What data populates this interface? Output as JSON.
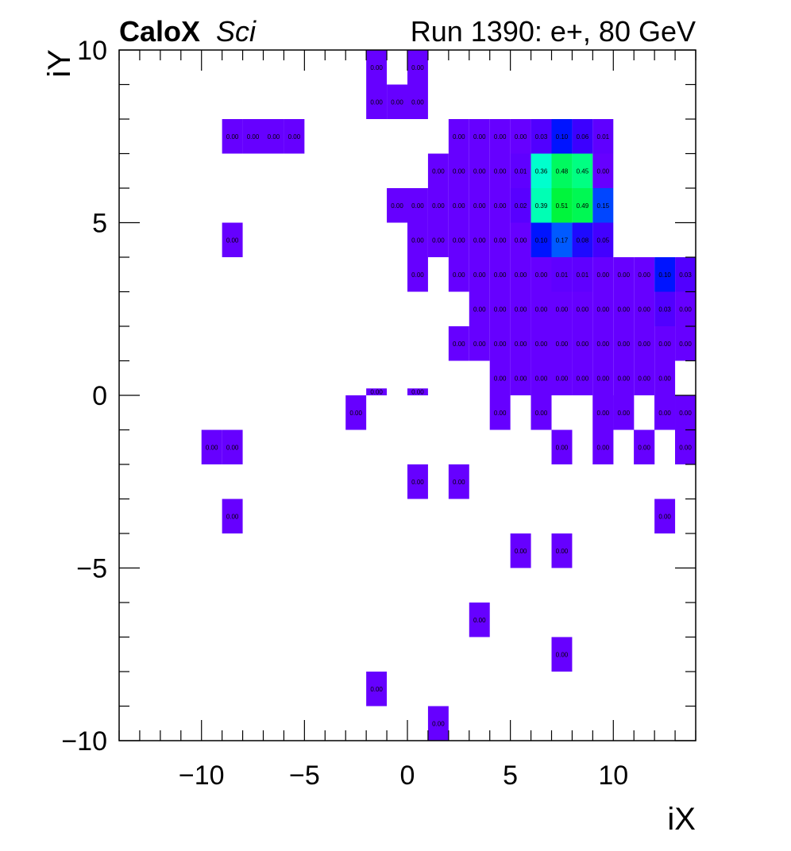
{
  "chart_data": {
    "type": "heatmap",
    "brand": "CaloX",
    "brand_suffix": "Sci",
    "title": "Run 1390: e+, 80 GeV",
    "xlabel": "iX",
    "ylabel": "iY",
    "xlim": [
      -14,
      14
    ],
    "ylim": [
      -10,
      10
    ],
    "x_ticks": [
      "−10",
      "−5",
      "0",
      "5",
      "10"
    ],
    "x_tick_values": [
      -10,
      -5,
      0,
      5,
      10
    ],
    "y_ticks": [
      "−10",
      "−5",
      "0",
      "5",
      "10"
    ],
    "y_tick_values": [
      -10,
      -5,
      0,
      5,
      10
    ],
    "grid": false,
    "cells": [
      {
        "x": -1.5,
        "y": 9.5,
        "value": 0.0
      },
      {
        "x": 0.5,
        "y": 9.5,
        "value": 0.0
      },
      {
        "x": -1.5,
        "y": 8.5,
        "value": 0.0
      },
      {
        "x": -0.5,
        "y": 8.5,
        "value": 0.0
      },
      {
        "x": 0.5,
        "y": 8.5,
        "value": 0.0
      },
      {
        "x": -8.5,
        "y": 7.5,
        "value": 0.0
      },
      {
        "x": -7.5,
        "y": 7.5,
        "value": 0.0
      },
      {
        "x": -6.5,
        "y": 7.5,
        "value": 0.0
      },
      {
        "x": -5.5,
        "y": 7.5,
        "value": 0.0
      },
      {
        "x": 2.5,
        "y": 7.5,
        "value": 0.0
      },
      {
        "x": 3.5,
        "y": 7.5,
        "value": 0.0
      },
      {
        "x": 4.5,
        "y": 7.5,
        "value": 0.0
      },
      {
        "x": 5.5,
        "y": 7.5,
        "value": 0.0
      },
      {
        "x": 6.5,
        "y": 7.5,
        "value": 0.03
      },
      {
        "x": 7.5,
        "y": 7.5,
        "value": 0.1
      },
      {
        "x": 8.5,
        "y": 7.5,
        "value": 0.06
      },
      {
        "x": 9.5,
        "y": 7.5,
        "value": 0.01
      },
      {
        "x": 1.5,
        "y": 6.5,
        "value": 0.0
      },
      {
        "x": 2.5,
        "y": 6.5,
        "value": 0.0
      },
      {
        "x": 3.5,
        "y": 6.5,
        "value": 0.0
      },
      {
        "x": 4.5,
        "y": 6.5,
        "value": 0.0
      },
      {
        "x": 5.5,
        "y": 6.5,
        "value": 0.01
      },
      {
        "x": 6.5,
        "y": 6.5,
        "value": 0.36
      },
      {
        "x": 7.5,
        "y": 6.5,
        "value": 0.48
      },
      {
        "x": 8.5,
        "y": 6.5,
        "value": 0.45
      },
      {
        "x": 9.5,
        "y": 6.5,
        "value": 0.0
      },
      {
        "x": -0.5,
        "y": 5.5,
        "value": 0.0
      },
      {
        "x": 0.5,
        "y": 5.5,
        "value": 0.0
      },
      {
        "x": 1.5,
        "y": 5.5,
        "value": 0.0
      },
      {
        "x": 2.5,
        "y": 5.5,
        "value": 0.0
      },
      {
        "x": 3.5,
        "y": 5.5,
        "value": 0.0
      },
      {
        "x": 4.5,
        "y": 5.5,
        "value": 0.0
      },
      {
        "x": 5.5,
        "y": 5.5,
        "value": 0.02
      },
      {
        "x": 6.5,
        "y": 5.5,
        "value": 0.39
      },
      {
        "x": 7.5,
        "y": 5.5,
        "value": 0.51
      },
      {
        "x": 8.5,
        "y": 5.5,
        "value": 0.49
      },
      {
        "x": 9.5,
        "y": 5.5,
        "value": 0.15
      },
      {
        "x": -8.5,
        "y": 4.5,
        "value": 0.0
      },
      {
        "x": 0.5,
        "y": 4.5,
        "value": 0.0
      },
      {
        "x": 1.5,
        "y": 4.5,
        "value": 0.0
      },
      {
        "x": 2.5,
        "y": 4.5,
        "value": 0.0
      },
      {
        "x": 3.5,
        "y": 4.5,
        "value": 0.0
      },
      {
        "x": 4.5,
        "y": 4.5,
        "value": 0.0
      },
      {
        "x": 5.5,
        "y": 4.5,
        "value": 0.0
      },
      {
        "x": 6.5,
        "y": 4.5,
        "value": 0.1
      },
      {
        "x": 7.5,
        "y": 4.5,
        "value": 0.17
      },
      {
        "x": 8.5,
        "y": 4.5,
        "value": 0.08
      },
      {
        "x": 9.5,
        "y": 4.5,
        "value": 0.05
      },
      {
        "x": 0.5,
        "y": 3.5,
        "value": 0.0
      },
      {
        "x": 2.5,
        "y": 3.5,
        "value": 0.0
      },
      {
        "x": 3.5,
        "y": 3.5,
        "value": 0.0
      },
      {
        "x": 4.5,
        "y": 3.5,
        "value": 0.0
      },
      {
        "x": 5.5,
        "y": 3.5,
        "value": 0.0
      },
      {
        "x": 6.5,
        "y": 3.5,
        "value": 0.0
      },
      {
        "x": 7.5,
        "y": 3.5,
        "value": 0.01
      },
      {
        "x": 8.5,
        "y": 3.5,
        "value": 0.01
      },
      {
        "x": 9.5,
        "y": 3.5,
        "value": 0.0
      },
      {
        "x": 10.5,
        "y": 3.5,
        "value": 0.0
      },
      {
        "x": 11.5,
        "y": 3.5,
        "value": 0.0
      },
      {
        "x": 12.5,
        "y": 3.5,
        "value": 0.1
      },
      {
        "x": 13.5,
        "y": 3.5,
        "value": 0.03
      },
      {
        "x": 3.5,
        "y": 2.5,
        "value": 0.0
      },
      {
        "x": 4.5,
        "y": 2.5,
        "value": 0.0
      },
      {
        "x": 5.5,
        "y": 2.5,
        "value": 0.0
      },
      {
        "x": 6.5,
        "y": 2.5,
        "value": 0.0
      },
      {
        "x": 7.5,
        "y": 2.5,
        "value": 0.0
      },
      {
        "x": 8.5,
        "y": 2.5,
        "value": 0.0
      },
      {
        "x": 9.5,
        "y": 2.5,
        "value": 0.0
      },
      {
        "x": 10.5,
        "y": 2.5,
        "value": 0.0
      },
      {
        "x": 11.5,
        "y": 2.5,
        "value": 0.0
      },
      {
        "x": 12.5,
        "y": 2.5,
        "value": 0.03
      },
      {
        "x": 13.5,
        "y": 2.5,
        "value": 0.0
      },
      {
        "x": 2.5,
        "y": 1.5,
        "value": 0.0
      },
      {
        "x": 3.5,
        "y": 1.5,
        "value": 0.0
      },
      {
        "x": 4.5,
        "y": 1.5,
        "value": 0.0
      },
      {
        "x": 5.5,
        "y": 1.5,
        "value": 0.0
      },
      {
        "x": 6.5,
        "y": 1.5,
        "value": 0.0
      },
      {
        "x": 7.5,
        "y": 1.5,
        "value": 0.0
      },
      {
        "x": 8.5,
        "y": 1.5,
        "value": 0.0
      },
      {
        "x": 9.5,
        "y": 1.5,
        "value": 0.0
      },
      {
        "x": 10.5,
        "y": 1.5,
        "value": 0.0
      },
      {
        "x": 11.5,
        "y": 1.5,
        "value": 0.0
      },
      {
        "x": 12.5,
        "y": 1.5,
        "value": 0.0
      },
      {
        "x": 13.5,
        "y": 1.5,
        "value": 0.0
      },
      {
        "x": 4.5,
        "y": 0.5,
        "value": 0.0
      },
      {
        "x": 5.5,
        "y": 0.5,
        "value": 0.0
      },
      {
        "x": 6.5,
        "y": 0.5,
        "value": 0.0
      },
      {
        "x": 7.5,
        "y": 0.5,
        "value": 0.0
      },
      {
        "x": 8.5,
        "y": 0.5,
        "value": 0.0
      },
      {
        "x": 9.5,
        "y": 0.5,
        "value": 0.0
      },
      {
        "x": 10.5,
        "y": 0.5,
        "value": 0.0
      },
      {
        "x": 11.5,
        "y": 0.5,
        "value": 0.0
      },
      {
        "x": 12.5,
        "y": 0.5,
        "value": 0.0
      },
      {
        "x": -1.5,
        "y": 0.1,
        "h": 0.2,
        "value": 0.0
      },
      {
        "x": 0.5,
        "y": 0.1,
        "h": 0.2,
        "value": 0.0
      },
      {
        "x": -2.5,
        "y": -0.5,
        "value": 0.0
      },
      {
        "x": 4.5,
        "y": -0.5,
        "value": 0.0
      },
      {
        "x": 6.5,
        "y": -0.5,
        "value": 0.0
      },
      {
        "x": 9.5,
        "y": -0.5,
        "value": 0.0
      },
      {
        "x": 10.5,
        "y": -0.5,
        "value": 0.0
      },
      {
        "x": 12.5,
        "y": -0.5,
        "value": 0.0
      },
      {
        "x": 13.5,
        "y": -0.5,
        "value": 0.0
      },
      {
        "x": -9.5,
        "y": -1.5,
        "value": 0.0
      },
      {
        "x": -8.5,
        "y": -1.5,
        "value": 0.0
      },
      {
        "x": 7.5,
        "y": -1.5,
        "value": 0.0
      },
      {
        "x": 9.5,
        "y": -1.5,
        "value": 0.0
      },
      {
        "x": 11.5,
        "y": -1.5,
        "value": 0.0
      },
      {
        "x": 13.5,
        "y": -1.5,
        "value": 0.0
      },
      {
        "x": 0.5,
        "y": -2.5,
        "value": 0.0
      },
      {
        "x": 2.5,
        "y": -2.5,
        "value": 0.0
      },
      {
        "x": -8.5,
        "y": -3.5,
        "value": 0.0
      },
      {
        "x": 12.5,
        "y": -3.5,
        "value": 0.0
      },
      {
        "x": 5.5,
        "y": -4.5,
        "value": 0.0
      },
      {
        "x": 7.5,
        "y": -4.5,
        "value": 0.0
      },
      {
        "x": 3.5,
        "y": -6.5,
        "value": 0.0
      },
      {
        "x": 7.5,
        "y": -7.5,
        "value": 0.0
      },
      {
        "x": -1.5,
        "y": -8.5,
        "value": 0.0
      },
      {
        "x": 1.5,
        "y": -9.5,
        "value": 0.0
      }
    ],
    "filler_cells": [
      {
        "x": 6.5,
        "y": -0.5
      },
      {
        "x": 9.5,
        "y": -0.5
      },
      {
        "x": 10.5,
        "y": -0.5
      },
      {
        "x": 12.5,
        "y": -0.5
      },
      {
        "x": 13.5,
        "y": -0.5
      },
      {
        "x": 7.5,
        "y": -1.5
      },
      {
        "x": 9.5,
        "y": -1.5
      },
      {
        "x": 11.5,
        "y": -1.5
      },
      {
        "x": 13.5,
        "y": -1.5
      }
    ],
    "colors": {
      "low": "#6600ff",
      "palette": [
        "#6600ff",
        "#3300ff",
        "#0000ff",
        "#0055ff",
        "#00aaff",
        "#00ffcc",
        "#00ff88",
        "#00ff33"
      ]
    }
  }
}
